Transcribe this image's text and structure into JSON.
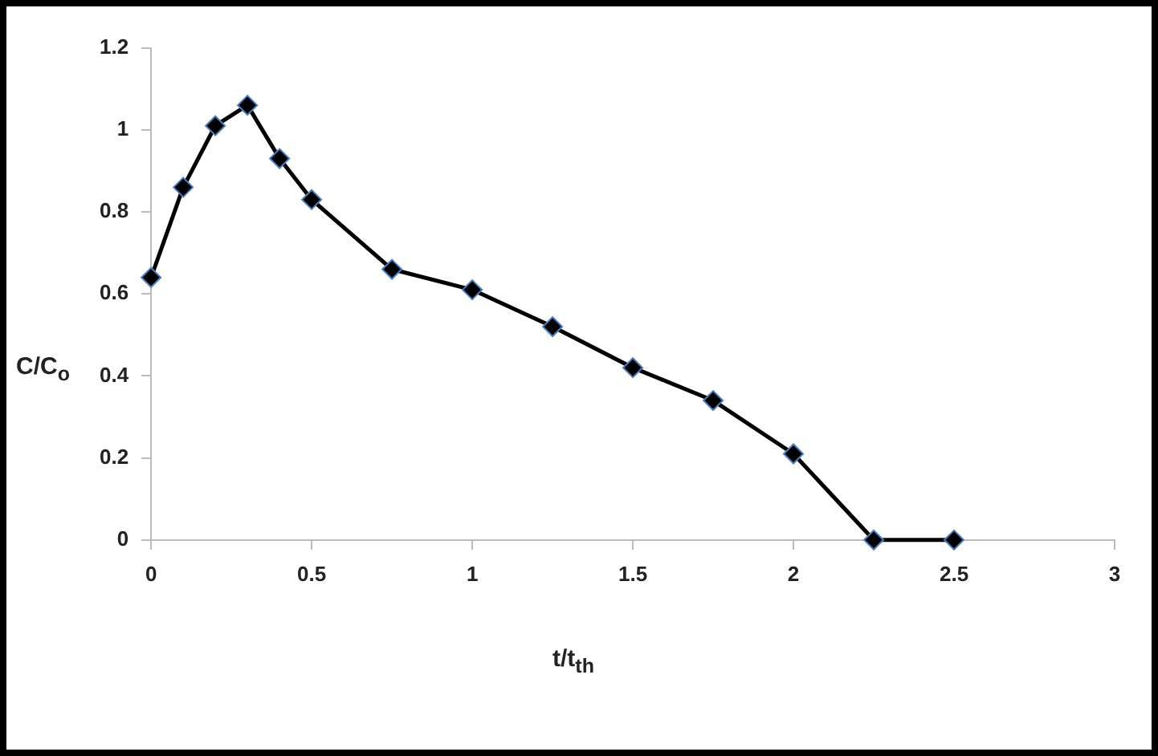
{
  "chart_data": {
    "type": "line",
    "xlabel": "t/t$_{th}$",
    "ylabel": "C/C$_{o}$",
    "x": [
      0,
      0.1,
      0.2,
      0.3,
      0.4,
      0.5,
      0.75,
      1,
      1.25,
      1.5,
      1.75,
      2,
      2.25,
      2.5
    ],
    "series": [
      {
        "color": "#000000",
        "values": [
          0.64,
          0.86,
          1.01,
          1.06,
          0.93,
          0.83,
          0.66,
          0.61,
          0.52,
          0.42,
          0.34,
          0.21,
          0,
          0
        ]
      }
    ],
    "xlim": [
      0,
      3
    ],
    "xticks": [
      0,
      0.5,
      1,
      1.5,
      2,
      2.5,
      3
    ],
    "ylim": [
      0,
      1.2
    ],
    "yticks": [
      0,
      0.2,
      0.4,
      0.6,
      0.8,
      1,
      1.2
    ],
    "grid": false,
    "legend": false,
    "marker": "diamond",
    "line_style": "solid"
  }
}
